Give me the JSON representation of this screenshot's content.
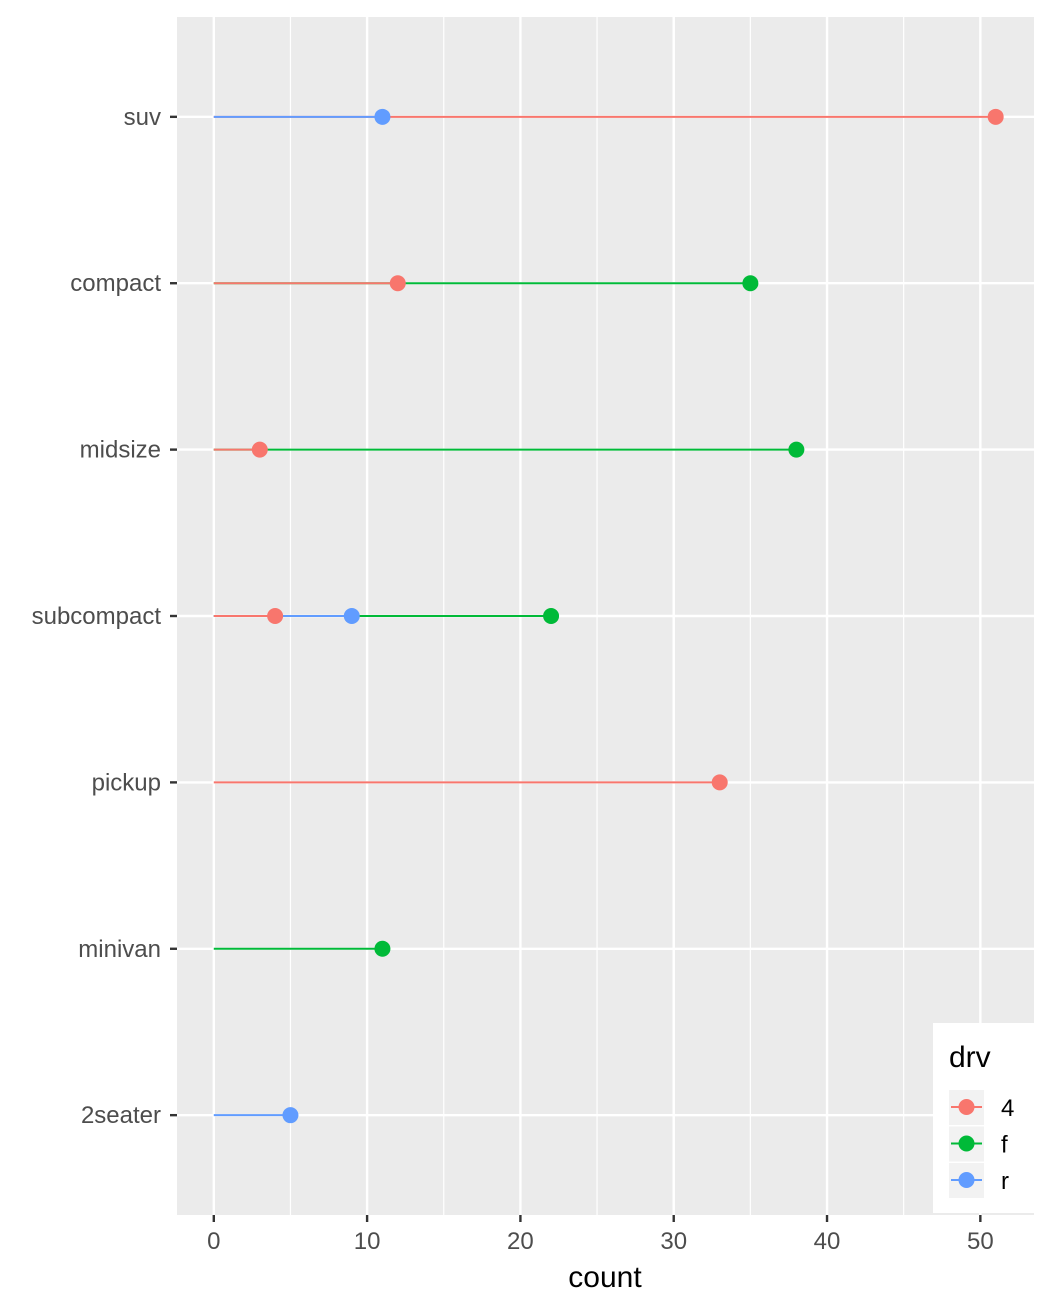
{
  "chart_data": {
    "type": "lollipop",
    "xlabel": "count",
    "ylabel": "",
    "xlim": [
      -2.4,
      53.5
    ],
    "x_ticks": [
      0,
      10,
      20,
      30,
      40,
      50
    ],
    "x_tick_labels": [
      "0",
      "10",
      "20",
      "30",
      "40",
      "50"
    ],
    "categories": [
      "suv",
      "compact",
      "midsize",
      "subcompact",
      "pickup",
      "minivan",
      "2seater"
    ],
    "series": [
      {
        "name": "4",
        "color": "#F8766D",
        "values": [
          51,
          12,
          3,
          4,
          33,
          null,
          null
        ]
      },
      {
        "name": "f",
        "color": "#00BA38",
        "values": [
          null,
          35,
          38,
          22,
          null,
          11,
          null
        ]
      },
      {
        "name": "r",
        "color": "#619CFF",
        "values": [
          11,
          null,
          null,
          9,
          null,
          null,
          5
        ]
      }
    ],
    "legend": {
      "title": "drv",
      "position": "bottom-right inside"
    },
    "grid": true,
    "panel_background": "#EBEBEB"
  }
}
